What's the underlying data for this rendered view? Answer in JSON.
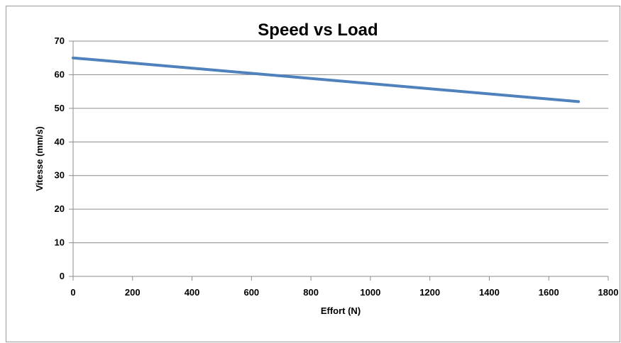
{
  "chart_data": {
    "type": "line",
    "title": "Speed vs Load",
    "xlabel": "Effort (N)",
    "ylabel": "Vitesse (mm/s)",
    "xlim": [
      0,
      1800
    ],
    "ylim": [
      0,
      70
    ],
    "xticks": [
      0,
      200,
      400,
      600,
      800,
      1000,
      1200,
      1400,
      1600,
      1800
    ],
    "yticks": [
      0,
      10,
      20,
      30,
      40,
      50,
      60,
      70
    ],
    "grid": "horizontal",
    "legend": "none",
    "series": [
      {
        "color": "#4f81bd",
        "x": [
          0,
          1700
        ],
        "y": [
          65,
          52
        ]
      }
    ]
  }
}
